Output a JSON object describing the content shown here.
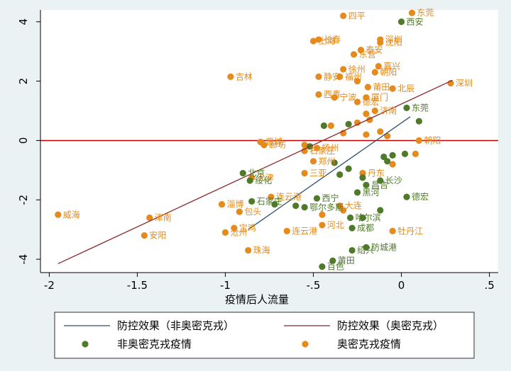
{
  "chart_data": {
    "type": "scatter",
    "xlabel": "疫情后人流量",
    "ylabel": "",
    "xlim": [
      -2.05,
      0.55
    ],
    "ylim": [
      -4.45,
      4.4
    ],
    "x_ticks": [
      -2,
      -1.5,
      -1,
      -0.5,
      0,
      0.5
    ],
    "x_tick_labels": [
      "-2",
      "-1.5",
      "-1",
      "-.5",
      "0",
      ".5"
    ],
    "y_ticks": [
      -4,
      -2,
      0,
      2,
      4
    ],
    "y_tick_labels": [
      "-4",
      "-2",
      "0",
      "2",
      "4"
    ],
    "grid": false,
    "legend_position": "bottom",
    "colors": {
      "non_omicron": "#4f7a2a",
      "omicron": "#e58a1c",
      "fit_non_omicron": "#2c4f6e",
      "fit_omicron": "#8b2a2a",
      "zero_line": "#c00000",
      "plot_background": "#ffffff",
      "page_background": "#eaf2f3"
    },
    "reference_line": {
      "y": 0
    },
    "lines": [
      {
        "name": "防控效果（非奥密克戎）",
        "x": [
          -0.87,
          0.05
        ],
        "y": [
          -3.0,
          0.8
        ]
      },
      {
        "name": "防控效果（奥密克戎）",
        "x": [
          -1.95,
          0.29
        ],
        "y": [
          -4.15,
          2.03
        ]
      }
    ],
    "series": [
      {
        "name": "非奥密克戎疫情",
        "points": [
          {
            "x": 0.0,
            "y": 4.0,
            "label": "西安"
          },
          {
            "x": 0.03,
            "y": 1.1,
            "label": "东莞"
          },
          {
            "x": -0.44,
            "y": 0.5,
            "label": ""
          },
          {
            "x": -0.3,
            "y": 0.55,
            "label": ""
          },
          {
            "x": 0.1,
            "y": 0.65,
            "label": ""
          },
          {
            "x": -0.52,
            "y": -0.2,
            "label": ""
          },
          {
            "x": -0.38,
            "y": -0.75,
            "label": ""
          },
          {
            "x": -0.3,
            "y": -0.95,
            "label": ""
          },
          {
            "x": -0.1,
            "y": -0.55,
            "label": ""
          },
          {
            "x": 0.02,
            "y": -0.45,
            "label": ""
          },
          {
            "x": -0.9,
            "y": -1.1,
            "label": "北京"
          },
          {
            "x": -0.86,
            "y": -1.35,
            "label": "绥化"
          },
          {
            "x": -0.35,
            "y": -1.15,
            "label": ""
          },
          {
            "x": -0.22,
            "y": -1.25,
            "label": ""
          },
          {
            "x": -0.12,
            "y": -1.35,
            "label": "长沙"
          },
          {
            "x": -0.2,
            "y": -1.5,
            "label": "昌吉"
          },
          {
            "x": -0.25,
            "y": -1.75,
            "label": "黑河"
          },
          {
            "x": 0.03,
            "y": -1.9,
            "label": "德宏"
          },
          {
            "x": -0.85,
            "y": -2.05,
            "label": "石家庄"
          },
          {
            "x": -0.72,
            "y": -2.15,
            "label": ""
          },
          {
            "x": -0.6,
            "y": -2.2,
            "label": ""
          },
          {
            "x": -0.55,
            "y": -2.25,
            "label": "鄂尔多斯"
          },
          {
            "x": -0.48,
            "y": -1.95,
            "label": "西宁"
          },
          {
            "x": -0.12,
            "y": -2.35,
            "label": ""
          },
          {
            "x": -0.22,
            "y": -2.6,
            "label": ""
          },
          {
            "x": -0.29,
            "y": -2.6,
            "label": "哈尔滨"
          },
          {
            "x": -0.28,
            "y": -2.95,
            "label": "成都"
          },
          {
            "x": -0.28,
            "y": -3.7,
            "label": "绍兴"
          },
          {
            "x": -0.2,
            "y": -3.6,
            "label": "防城港"
          },
          {
            "x": -0.39,
            "y": -4.05,
            "label": "莆田"
          },
          {
            "x": -0.45,
            "y": -4.25,
            "label": "百色"
          },
          {
            "x": -0.05,
            "y": -0.5,
            "label": ""
          },
          {
            "x": -0.08,
            "y": -0.7,
            "label": ""
          }
        ]
      },
      {
        "name": "奥密克戎疫情",
        "points": [
          {
            "x": 0.06,
            "y": 4.3,
            "label": "东莞"
          },
          {
            "x": -0.33,
            "y": 4.2,
            "label": "四平"
          },
          {
            "x": -0.47,
            "y": 3.4,
            "label": "长春"
          },
          {
            "x": -0.5,
            "y": 3.35,
            "label": "上海"
          },
          {
            "x": -0.12,
            "y": 3.4,
            "label": "深圳"
          },
          {
            "x": -0.12,
            "y": 3.3,
            "label": "沈阳"
          },
          {
            "x": -0.23,
            "y": 3.05,
            "label": "泰安"
          },
          {
            "x": -0.27,
            "y": 2.9,
            "label": "东营"
          },
          {
            "x": -0.13,
            "y": 2.5,
            "label": "嘉兴"
          },
          {
            "x": -0.33,
            "y": 2.4,
            "label": "徐州"
          },
          {
            "x": -0.15,
            "y": 2.3,
            "label": "朝阳"
          },
          {
            "x": -0.47,
            "y": 2.15,
            "label": "静安"
          },
          {
            "x": -0.35,
            "y": 2.15,
            "label": "福州"
          },
          {
            "x": -0.25,
            "y": 2.0,
            "label": ""
          },
          {
            "x": -0.97,
            "y": 2.15,
            "label": "吉林"
          },
          {
            "x": -0.19,
            "y": 1.8,
            "label": "莆田"
          },
          {
            "x": -0.05,
            "y": 1.75,
            "label": "北辰"
          },
          {
            "x": -0.47,
            "y": 1.55,
            "label": "西青"
          },
          {
            "x": -0.38,
            "y": 1.45,
            "label": "宁波"
          },
          {
            "x": -0.2,
            "y": 1.45,
            "label": "厦门"
          },
          {
            "x": -0.25,
            "y": 1.3,
            "label": "德宏"
          },
          {
            "x": 0.28,
            "y": 1.93,
            "label": "深圳"
          },
          {
            "x": -0.15,
            "y": 1.0,
            "label": "济南"
          },
          {
            "x": -0.2,
            "y": 0.9,
            "label": ""
          },
          {
            "x": -0.18,
            "y": 0.7,
            "label": ""
          },
          {
            "x": -0.25,
            "y": 0.6,
            "label": ""
          },
          {
            "x": -0.4,
            "y": 0.5,
            "label": ""
          },
          {
            "x": -0.12,
            "y": 0.3,
            "label": ""
          },
          {
            "x": -0.2,
            "y": 0.2,
            "label": ""
          },
          {
            "x": -0.33,
            "y": 0.25,
            "label": ""
          },
          {
            "x": -0.08,
            "y": 0.15,
            "label": ""
          },
          {
            "x": -0.8,
            "y": -0.05,
            "label": "晋城"
          },
          {
            "x": -0.78,
            "y": -0.15,
            "label": "廊坊"
          },
          {
            "x": -0.55,
            "y": -0.15,
            "label": ""
          },
          {
            "x": -0.48,
            "y": -0.25,
            "label": "扬州"
          },
          {
            "x": -0.55,
            "y": -0.35,
            "label": "石家庄"
          },
          {
            "x": 0.1,
            "y": 0.0,
            "label": "朝阳"
          },
          {
            "x": 0.08,
            "y": -0.45,
            "label": ""
          },
          {
            "x": -0.05,
            "y": -0.8,
            "label": ""
          },
          {
            "x": -0.55,
            "y": -1.1,
            "label": "三亚"
          },
          {
            "x": -0.5,
            "y": -0.7,
            "label": "郑州"
          },
          {
            "x": -0.22,
            "y": -1.1,
            "label": "丹东"
          },
          {
            "x": -0.85,
            "y": -1.25,
            "label": "天津"
          },
          {
            "x": -0.74,
            "y": -1.9,
            "label": "连云港"
          },
          {
            "x": -1.02,
            "y": -2.15,
            "label": "淄博"
          },
          {
            "x": -0.92,
            "y": -2.4,
            "label": "包头"
          },
          {
            "x": -1.0,
            "y": -3.1,
            "label": "沧州"
          },
          {
            "x": -0.95,
            "y": -2.95,
            "label": "宝鸡"
          },
          {
            "x": -0.87,
            "y": -3.7,
            "label": "珠海"
          },
          {
            "x": -0.65,
            "y": -3.05,
            "label": "连云港"
          },
          {
            "x": -0.45,
            "y": -2.85,
            "label": "河北"
          },
          {
            "x": -0.05,
            "y": -3.05,
            "label": "牡丹江"
          },
          {
            "x": -0.35,
            "y": -2.2,
            "label": "大连"
          },
          {
            "x": -0.33,
            "y": -2.35,
            "label": ""
          },
          {
            "x": -0.45,
            "y": -2.5,
            "label": ""
          },
          {
            "x": -1.95,
            "y": -2.5,
            "label": "威海"
          },
          {
            "x": -1.43,
            "y": -2.6,
            "label": "津南"
          },
          {
            "x": -1.46,
            "y": -3.2,
            "label": "安阳"
          }
        ]
      }
    ],
    "legend": [
      {
        "label": "防控效果（非奥密克戎）",
        "kind": "line",
        "color_key": "fit_non_omicron"
      },
      {
        "label": "防控效果（奥密克戎）",
        "kind": "line",
        "color_key": "fit_omicron"
      },
      {
        "label": "非奥密克戎疫情",
        "kind": "marker",
        "color_key": "non_omicron"
      },
      {
        "label": "奥密克戎疫情",
        "kind": "marker",
        "color_key": "omicron"
      }
    ]
  }
}
